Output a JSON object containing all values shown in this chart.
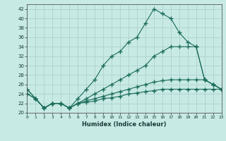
{
  "xlabel": "Humidex (Indice chaleur)",
  "bg_color": "#c8eae4",
  "line_color": "#1a6b5a",
  "xlim": [
    0,
    23
  ],
  "ylim": [
    20,
    43
  ],
  "xticks": [
    0,
    1,
    2,
    3,
    4,
    5,
    6,
    7,
    8,
    9,
    10,
    11,
    12,
    13,
    14,
    15,
    16,
    17,
    18,
    19,
    20,
    21,
    22,
    23
  ],
  "yticks": [
    20,
    22,
    24,
    26,
    28,
    30,
    32,
    34,
    36,
    38,
    40,
    42
  ],
  "line1_x": [
    0,
    1,
    2,
    3,
    4,
    5,
    6,
    7,
    8,
    9,
    10,
    11,
    12,
    13,
    14,
    15,
    16,
    17,
    18,
    19,
    20,
    21,
    22,
    23
  ],
  "line1_y": [
    25,
    23,
    21,
    22,
    22,
    21,
    23,
    25,
    27,
    30,
    32,
    33,
    35,
    36,
    39,
    42,
    41,
    40,
    37,
    35,
    34,
    27,
    26,
    25
  ],
  "line2_x": [
    0,
    1,
    2,
    3,
    4,
    5,
    6,
    7,
    8,
    9,
    10,
    11,
    12,
    13,
    14,
    15,
    16,
    17,
    18,
    19,
    20,
    21,
    22,
    23
  ],
  "line2_y": [
    25,
    23,
    21,
    22,
    22,
    21,
    22,
    23,
    24,
    25,
    26,
    27,
    28,
    29,
    30,
    32,
    33,
    34,
    34,
    34,
    34,
    27,
    26,
    25
  ],
  "line3_x": [
    0,
    1,
    2,
    3,
    4,
    5,
    6,
    7,
    8,
    9,
    10,
    11,
    12,
    13,
    14,
    15,
    16,
    17,
    18,
    19,
    20,
    21,
    22,
    23
  ],
  "line3_y": [
    24,
    23,
    21,
    22,
    22,
    21,
    22,
    22.5,
    23,
    23.5,
    24,
    24.5,
    25,
    25.5,
    26,
    26.5,
    26.8,
    27,
    27,
    27,
    27,
    27,
    26,
    25
  ],
  "line4_x": [
    0,
    1,
    2,
    3,
    4,
    5,
    6,
    7,
    8,
    9,
    10,
    11,
    12,
    13,
    14,
    15,
    16,
    17,
    18,
    19,
    20,
    21,
    22,
    23
  ],
  "line4_y": [
    24,
    23,
    21,
    22,
    22,
    21,
    22,
    22.2,
    22.5,
    23,
    23.2,
    23.5,
    24,
    24.2,
    24.5,
    24.7,
    25,
    25,
    25,
    25,
    25,
    25,
    25,
    25
  ]
}
